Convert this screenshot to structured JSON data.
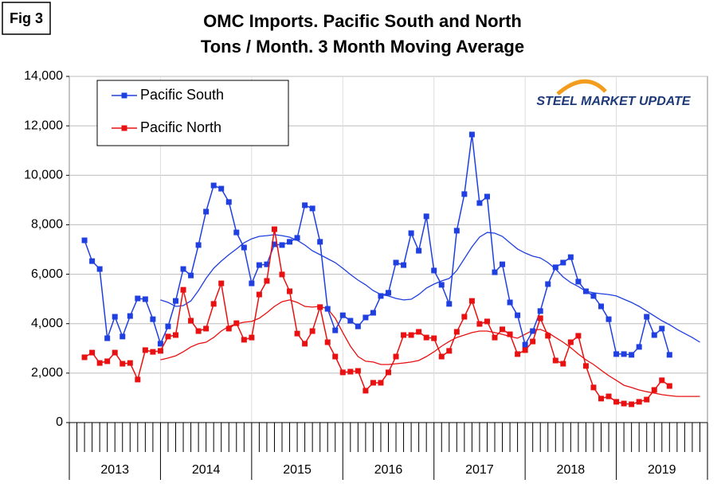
{
  "chart_data": {
    "type": "line",
    "figure_label": "Fig 3",
    "title": "OMC Imports. Pacific South and North",
    "subtitle": "Tons / Month. 3 Month Moving Average",
    "logo": "STEEL MARKET UPDATE",
    "grid": true,
    "xlim": [
      0,
      84
    ],
    "xticks": [
      {
        "value": 6,
        "label": "2013"
      },
      {
        "value": 18,
        "label": "2014"
      },
      {
        "value": 30,
        "label": "2015"
      },
      {
        "value": 42,
        "label": "2016"
      },
      {
        "value": 54,
        "label": "2017"
      },
      {
        "value": 66,
        "label": "2018"
      },
      {
        "value": 78,
        "label": "2019"
      }
    ],
    "ylim": [
      0,
      14000
    ],
    "yticks": [
      0,
      {
        "value": 2000,
        "label": "2,000"
      },
      {
        "value": 4000,
        "label": "4,000"
      },
      {
        "value": 6000,
        "label": "6,000"
      },
      {
        "value": 8000,
        "label": "8,000"
      },
      {
        "value": 10000,
        "label": "10,000"
      },
      {
        "value": 12000,
        "label": "12,000"
      },
      {
        "value": 14000,
        "label": "14,000"
      }
    ],
    "x": [
      2,
      3,
      4,
      5,
      6,
      7,
      8,
      9,
      10,
      11,
      12,
      13,
      14,
      15,
      16,
      17,
      18,
      19,
      20,
      21,
      22,
      23,
      24,
      25,
      26,
      27,
      28,
      29,
      30,
      31,
      32,
      33,
      34,
      35,
      36,
      37,
      38,
      39,
      40,
      41,
      42,
      43,
      44,
      45,
      46,
      47,
      48,
      49,
      50,
      51,
      52,
      53,
      54,
      55,
      56,
      57,
      58,
      59,
      60,
      61,
      62,
      63,
      64,
      65,
      66,
      67,
      68,
      69,
      70,
      71,
      72,
      73,
      74,
      75,
      76,
      77,
      78,
      79
    ],
    "trend_x": [
      12,
      13,
      14,
      15,
      16,
      17,
      18,
      19,
      20,
      21,
      22,
      23,
      24,
      25,
      26,
      27,
      28,
      29,
      30,
      31,
      32,
      33,
      34,
      35,
      36,
      37,
      38,
      39,
      40,
      41,
      42,
      43,
      44,
      45,
      46,
      47,
      48,
      49,
      50,
      51,
      52,
      53,
      54,
      55,
      56,
      57,
      58,
      59,
      60,
      61,
      62,
      63,
      64,
      65,
      66,
      67,
      68,
      69,
      70,
      71,
      72,
      73,
      74,
      75,
      76,
      77,
      78,
      79,
      80,
      81,
      82,
      83
    ],
    "series": [
      {
        "name": "Pacific South",
        "color": "#1f3fe0",
        "values": [
          7370,
          6530,
          6210,
          3410,
          4280,
          3480,
          4310,
          5020,
          4990,
          4180,
          3190,
          3890,
          4920,
          6210,
          5950,
          7180,
          8530,
          9590,
          9460,
          8920,
          7690,
          7080,
          5630,
          6370,
          6400,
          7210,
          7180,
          7310,
          7470,
          8790,
          8660,
          7310,
          4600,
          3730,
          4340,
          4120,
          3890,
          4250,
          4440,
          5120,
          5250,
          6470,
          6370,
          7660,
          6950,
          8340,
          6150,
          5570,
          4800,
          7760,
          9240,
          11650,
          8880,
          9140,
          6080,
          6400,
          4860,
          4340,
          3150,
          3700,
          4510,
          5600,
          6280,
          6470,
          6690,
          5700,
          5310,
          5120,
          4700,
          4180,
          2770,
          2770,
          2740,
          3060,
          4280,
          3540,
          3800,
          2740
        ],
        "trend": [
          4960,
          4860,
          4700,
          4730,
          4920,
          5340,
          5830,
          6240,
          6530,
          6790,
          7020,
          7270,
          7430,
          7530,
          7560,
          7600,
          7560,
          7500,
          7370,
          7180,
          6950,
          6790,
          6630,
          6470,
          6240,
          5990,
          5760,
          5570,
          5340,
          5180,
          5120,
          5020,
          4960,
          4990,
          5180,
          5440,
          5600,
          5730,
          5830,
          6150,
          6630,
          7110,
          7500,
          7690,
          7660,
          7530,
          7270,
          7020,
          6860,
          6730,
          6660,
          6470,
          6210,
          5890,
          5660,
          5500,
          5310,
          5250,
          5210,
          5180,
          5120,
          4990,
          4860,
          4700,
          4510,
          4310,
          4120,
          3960,
          3770,
          3600,
          3440,
          3250
        ]
      },
      {
        "name": "Pacific North",
        "color": "#e81010",
        "values": [
          2640,
          2830,
          2410,
          2480,
          2830,
          2380,
          2410,
          1740,
          2930,
          2860,
          2900,
          3480,
          3540,
          5370,
          4120,
          3700,
          3800,
          4800,
          5630,
          3800,
          4020,
          3350,
          3440,
          5180,
          5730,
          7820,
          5990,
          5310,
          3600,
          3190,
          3700,
          4670,
          3250,
          2670,
          2030,
          2060,
          2090,
          1290,
          1610,
          1610,
          2030,
          2670,
          3540,
          3540,
          3670,
          3440,
          3410,
          2670,
          2900,
          3670,
          4280,
          4920,
          3990,
          4090,
          3440,
          3770,
          3570,
          2770,
          2930,
          3280,
          4220,
          3510,
          2510,
          2380,
          3250,
          3510,
          2290,
          1420,
          970,
          1060,
          840,
          770,
          740,
          840,
          930,
          1320,
          1710,
          1480
        ],
        "trend": [
          2540,
          2610,
          2700,
          2860,
          3060,
          3190,
          3250,
          3440,
          3700,
          3890,
          3990,
          4060,
          4090,
          4220,
          4440,
          4700,
          4890,
          4960,
          4860,
          4700,
          4670,
          4700,
          4600,
          4220,
          3640,
          3090,
          2670,
          2480,
          2450,
          2350,
          2350,
          2380,
          2410,
          2450,
          2510,
          2670,
          2860,
          3090,
          3280,
          3440,
          3540,
          3640,
          3700,
          3700,
          3640,
          3570,
          3480,
          3410,
          3570,
          3730,
          3770,
          3640,
          3440,
          3250,
          3030,
          2770,
          2540,
          2350,
          2120,
          1900,
          1710,
          1510,
          1420,
          1320,
          1250,
          1190,
          1130,
          1090,
          1060,
          1060,
          1060,
          1060
        ]
      }
    ]
  }
}
